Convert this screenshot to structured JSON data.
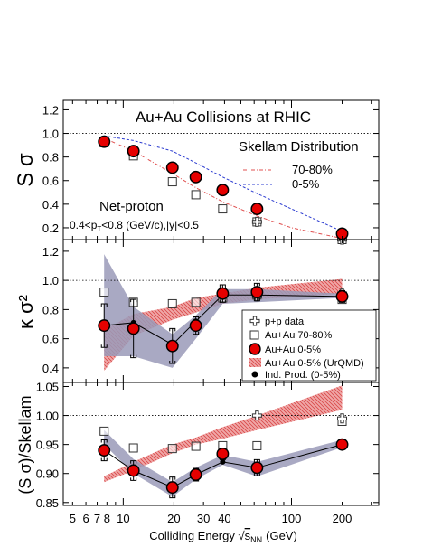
{
  "figure": {
    "xlabel": "Colliding Energy",
    "xlabel_sqrt": "s",
    "xlabel_sub": "NN",
    "xlabel_unit": "(GeV)",
    "xticks": [
      5,
      6,
      7,
      8,
      10,
      20,
      30,
      40,
      100,
      200
    ],
    "xtick_labels": [
      "5",
      "6",
      "7",
      "8",
      "10",
      "20",
      "30",
      "40",
      "100",
      "200"
    ],
    "xlim": [
      4.4,
      330
    ],
    "xscale": "log",
    "colors": {
      "axis": "#000000",
      "data_fill": "#e60000",
      "band_urqmd": "#e06060",
      "band_pp": "#9a9ab8",
      "line_7080": "#e05050",
      "line_05": "#2b3bd0",
      "open_marker": "#333333"
    }
  },
  "chart_data": [
    {
      "panel": "top",
      "type": "scatter",
      "title": "Au+Au Collisions at RHIC",
      "ylabel": "S σ",
      "ylim": [
        0.1,
        1.28
      ],
      "yticks": [
        0.2,
        0.4,
        0.6,
        0.8,
        1.0,
        1.2
      ],
      "ytick_labels": [
        "0.2",
        "0.4",
        "0.6",
        "0.8",
        "1.0",
        "1.2"
      ],
      "reference_line": 1.0,
      "annotations": {
        "skellam": "Skellam Distribution",
        "netproton": "Net-proton",
        "cuts_a": "0.4<p",
        "cuts_sub": "T",
        "cuts_b": "<0.8 (GeV/c),|y|<0.5"
      },
      "legend": [
        {
          "label": "70-80%",
          "style": "dash-dot",
          "color": "#e05050"
        },
        {
          "label": "0-5%",
          "style": "dashed",
          "color": "#2b3bd0"
        }
      ],
      "series": [
        {
          "name": "Au+Au 0-5%",
          "marker": "filled-circle",
          "x": [
            7.7,
            11.5,
            19.6,
            27,
            39,
            62.4,
            200
          ],
          "y": [
            0.93,
            0.85,
            0.71,
            0.63,
            0.52,
            0.36,
            0.15
          ],
          "err": [
            0.03,
            0.03,
            0.03,
            0.03,
            0.02,
            0.02,
            0.02
          ]
        },
        {
          "name": "Au+Au 70-80%",
          "marker": "open-square",
          "x": [
            7.7,
            11.5,
            19.6,
            27,
            39,
            62.4,
            200
          ],
          "y": [
            0.92,
            0.81,
            0.59,
            0.48,
            0.36,
            0.25,
            0.1
          ]
        },
        {
          "name": "p+p data",
          "marker": "open-cross",
          "x": [
            62.4,
            200
          ],
          "y": [
            0.25,
            0.1
          ]
        }
      ],
      "curves": [
        {
          "name": "0-5%",
          "x": [
            7.7,
            11.5,
            19.6,
            27,
            39,
            62.4,
            100,
            200
          ],
          "y": [
            0.98,
            0.94,
            0.85,
            0.75,
            0.63,
            0.49,
            0.36,
            0.17
          ]
        },
        {
          "name": "70-80%",
          "x": [
            7.7,
            11.5,
            19.6,
            27,
            39,
            62.4,
            100,
            200
          ],
          "y": [
            0.96,
            0.85,
            0.66,
            0.54,
            0.42,
            0.3,
            0.2,
            0.11
          ]
        }
      ]
    },
    {
      "panel": "middle",
      "type": "scatter",
      "ylabel": "κ σ²",
      "ylim": [
        0.3,
        1.28
      ],
      "yticks": [
        0.4,
        0.6,
        0.8,
        1.0,
        1.2
      ],
      "ytick_labels": [
        "0.4",
        "0.6",
        "0.8",
        "1.0",
        "1.2"
      ],
      "reference_line": 1.0,
      "legend": [
        {
          "label": "p+p data",
          "marker": "open-cross"
        },
        {
          "label": "Au+Au 70-80%",
          "marker": "open-square"
        },
        {
          "label": "Au+Au 0-5%",
          "marker": "filled-circle"
        },
        {
          "label": "Au+Au 0-5% (UrQMD)",
          "marker": "band"
        },
        {
          "label": "Ind. Prod. (0-5%)",
          "marker": "small-dot"
        }
      ],
      "series": [
        {
          "name": "Au+Au 0-5%",
          "marker": "filled-circle",
          "x": [
            7.7,
            11.5,
            19.6,
            27,
            39,
            62.4,
            200
          ],
          "y": [
            0.69,
            0.67,
            0.55,
            0.69,
            0.91,
            0.92,
            0.89
          ],
          "err": [
            0.15,
            0.2,
            0.12,
            0.06,
            0.06,
            0.06,
            0.04
          ]
        },
        {
          "name": "Au+Au 70-80%",
          "marker": "open-square",
          "x": [
            7.7,
            11.5,
            19.6,
            27,
            39,
            62.4,
            200
          ],
          "y": [
            0.92,
            0.85,
            0.84,
            0.85,
            0.88,
            0.9,
            0.87
          ]
        },
        {
          "name": "p+p data",
          "marker": "open-cross",
          "x": [
            62.4,
            200
          ],
          "y": [
            0.89,
            0.91
          ]
        },
        {
          "name": "Ind. Prod. (0-5%)",
          "marker": "small-dot",
          "connect": true,
          "x": [
            7.7,
            11.5,
            19.6,
            27,
            39,
            62.4,
            200
          ],
          "y": [
            0.69,
            0.71,
            0.56,
            0.72,
            0.9,
            0.9,
            0.89
          ]
        }
      ],
      "bands": [
        {
          "name": "Au+Au 0-5% (UrQMD)",
          "x": [
            7.7,
            11.5,
            19.6,
            27,
            39,
            62.4,
            200
          ],
          "lower": [
            0.38,
            0.62,
            0.73,
            0.78,
            0.84,
            0.87,
            0.91
          ],
          "upper": [
            0.66,
            0.77,
            0.82,
            0.88,
            0.91,
            0.95,
            1.01
          ]
        },
        {
          "name": "pp-band",
          "x": [
            7.7,
            11.5,
            19.6,
            27,
            39,
            62.4,
            200
          ],
          "lower": [
            0.48,
            0.48,
            0.4,
            0.6,
            0.84,
            0.85,
            0.88
          ],
          "upper": [
            1.18,
            0.82,
            0.63,
            0.76,
            0.94,
            0.94,
            0.91
          ]
        }
      ]
    },
    {
      "panel": "bottom",
      "type": "scatter",
      "ylabel": "(S σ)/Skellam",
      "ylim": [
        0.845,
        1.057
      ],
      "yticks": [
        0.85,
        0.9,
        0.95,
        1.0,
        1.05
      ],
      "ytick_labels": [
        "0.85",
        "0.90",
        "0.95",
        "1.00",
        "1.05"
      ],
      "reference_line": 1.0,
      "series": [
        {
          "name": "Au+Au 0-5%",
          "marker": "filled-circle",
          "x": [
            7.7,
            11.5,
            19.6,
            27,
            39,
            62.4,
            200
          ],
          "y": [
            0.94,
            0.905,
            0.876,
            0.898,
            0.934,
            0.91,
            0.95
          ],
          "err": [
            0.018,
            0.017,
            0.018,
            0.011,
            0.01,
            0.014,
            0.008
          ]
        },
        {
          "name": "Au+Au 70-80%",
          "marker": "open-square",
          "x": [
            7.7,
            11.5,
            19.6,
            27,
            39,
            62.4,
            200
          ],
          "y": [
            0.973,
            0.944,
            0.943,
            0.947,
            0.948,
            0.948,
            0.99
          ]
        },
        {
          "name": "p+p data",
          "marker": "open-cross",
          "x": [
            62.4,
            200
          ],
          "y": [
            1.0,
            0.995
          ]
        },
        {
          "name": "Ind. Prod. (0-5%)",
          "marker": "small-dot",
          "connect": true,
          "x": [
            7.7,
            11.5,
            19.6,
            27,
            39,
            62.4,
            200
          ],
          "y": [
            0.94,
            0.905,
            0.876,
            0.898,
            0.92,
            0.91,
            0.95
          ]
        }
      ],
      "bands": [
        {
          "name": "Au+Au 0-5% (UrQMD)",
          "x": [
            7.7,
            11.5,
            19.6,
            27,
            39,
            62.4,
            200
          ],
          "lower": [
            0.885,
            0.905,
            0.935,
            0.95,
            0.96,
            0.975,
            1.01
          ],
          "upper": [
            0.895,
            0.92,
            0.95,
            0.962,
            0.98,
            1.0,
            1.052
          ]
        },
        {
          "name": "pp-band",
          "x": [
            7.7,
            11.5,
            19.6,
            27,
            39,
            62.4,
            200
          ],
          "lower": [
            0.95,
            0.9,
            0.86,
            0.89,
            0.915,
            0.895,
            0.945
          ],
          "upper": [
            0.975,
            0.925,
            0.885,
            0.91,
            0.932,
            0.92,
            0.958
          ]
        }
      ]
    }
  ]
}
